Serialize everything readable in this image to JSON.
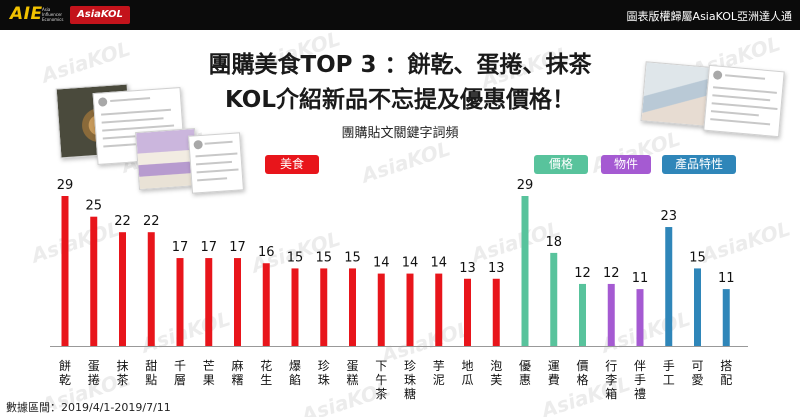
{
  "header": {
    "logo_text": "AIE",
    "logo_subtext": "Asia Influencer Economics",
    "brand": "AsiaKOL",
    "copyright": "圖表版權歸屬AsiaKOL亞洲達人通"
  },
  "title_line1": "團購美食TOP 3 ：餅乾、蛋捲、抹茶",
  "title_line2": "KOL介紹新品不忘提及優惠價格！",
  "subtitle": "團購貼文關鍵字詞頻",
  "footer": "數據區間：2019/4/1-2019/7/11",
  "watermark_text": "AsiaKOL",
  "groups": [
    {
      "name": "美食",
      "color": "#e8151b"
    },
    {
      "name": "價格",
      "color": "#58c39c"
    },
    {
      "name": "物件",
      "color": "#a55ad2"
    },
    {
      "name": "產品特性",
      "color": "#2f86b9"
    }
  ],
  "chart_data": {
    "type": "bar",
    "title": "團購貼文關鍵字詞頻",
    "categories": [
      "餅乾",
      "蛋捲",
      "抹茶",
      "甜點",
      "千層",
      "芒果",
      "麻糬",
      "花生",
      "爆餡",
      "珍珠",
      "蛋糕",
      "下午茶",
      "珍珠糖",
      "芋泥",
      "地瓜",
      "泡芙",
      "優惠",
      "運費",
      "價格",
      "行李箱",
      "伴手禮",
      "手工",
      "可愛",
      "搭配"
    ],
    "values": [
      29,
      25,
      22,
      22,
      17,
      17,
      17,
      16,
      15,
      15,
      15,
      14,
      14,
      14,
      13,
      13,
      29,
      18,
      12,
      12,
      11,
      23,
      15,
      11
    ],
    "group_index": [
      0,
      0,
      0,
      0,
      0,
      0,
      0,
      0,
      0,
      0,
      0,
      0,
      0,
      0,
      0,
      0,
      1,
      1,
      1,
      2,
      2,
      3,
      3,
      3
    ],
    "ylim": [
      0,
      29
    ],
    "grid": false,
    "legend": "above bar groups"
  }
}
